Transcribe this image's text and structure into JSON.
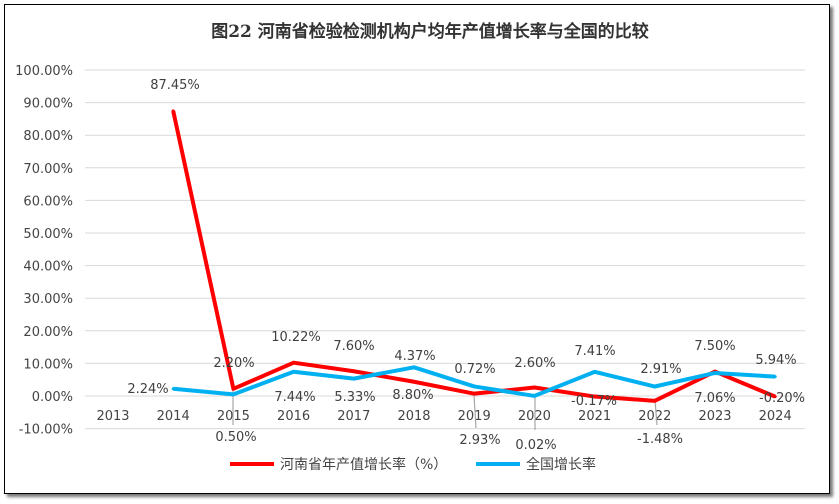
{
  "chart_data": {
    "type": "line",
    "title": "图22  河南省检验检测机构户均年产值增长率与全国的比较",
    "categories": [
      "2013",
      "2014",
      "2015",
      "2016",
      "2017",
      "2018",
      "2019",
      "2020",
      "2021",
      "2022",
      "2023",
      "2024"
    ],
    "ylim": [
      -10,
      100
    ],
    "yticks": [
      "-10.00%",
      "0.00%",
      "10.00%",
      "20.00%",
      "30.00%",
      "40.00%",
      "50.00%",
      "60.00%",
      "70.00%",
      "80.00%",
      "90.00%",
      "100.00%"
    ],
    "grid": true,
    "legend_position": "bottom",
    "series": [
      {
        "name": "河南省年产值增长率（%）",
        "color": "#ff0000",
        "values": [
          null,
          87.45,
          2.2,
          10.22,
          7.6,
          4.37,
          0.72,
          2.6,
          -0.17,
          -1.48,
          7.5,
          -0.2
        ],
        "labels": [
          "",
          "87.45%",
          "2.20%",
          "10.22%",
          "7.60%",
          "4.37%",
          "0.72%",
          "2.60%",
          "-0.17%",
          "-1.48%",
          "7.50%",
          "-0.20%"
        ]
      },
      {
        "name": "全国增长率",
        "color": "#00b0f0",
        "values": [
          null,
          2.24,
          0.5,
          7.44,
          5.33,
          8.8,
          2.93,
          0.02,
          7.41,
          2.91,
          7.06,
          5.94
        ],
        "labels": [
          "",
          "2.24%",
          "0.50%",
          "7.44%",
          "5.33%",
          "8.80%",
          "2.93%",
          "0.02%",
          "7.41%",
          "2.91%",
          "7.06%",
          "5.94%"
        ]
      }
    ]
  }
}
